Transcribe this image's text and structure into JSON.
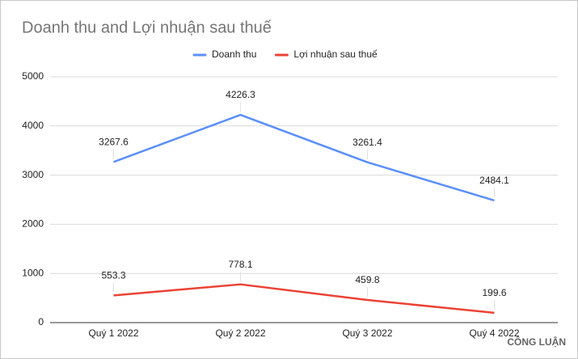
{
  "chart_data": {
    "type": "line",
    "title": "Doanh thu and Lợi nhuận sau thuế",
    "categories": [
      "Quý 1 2022",
      "Quý 2 2022",
      "Quý 3 2022",
      "Quý 4 2022"
    ],
    "series": [
      {
        "name": "Doanh thu",
        "color": "#5b8ff9",
        "values": [
          3267.6,
          4226.3,
          3261.4,
          2484.1
        ]
      },
      {
        "name": "Lợi nhuận sau thuế",
        "color": "#ea4335",
        "values": [
          553.3,
          778.1,
          459.8,
          199.6
        ]
      }
    ],
    "ylim": [
      0,
      5000
    ],
    "yticks": [
      0,
      1000,
      2000,
      3000,
      4000,
      5000
    ],
    "grid": true,
    "legend": "top",
    "watermark": "CÔNG LUẬN"
  }
}
